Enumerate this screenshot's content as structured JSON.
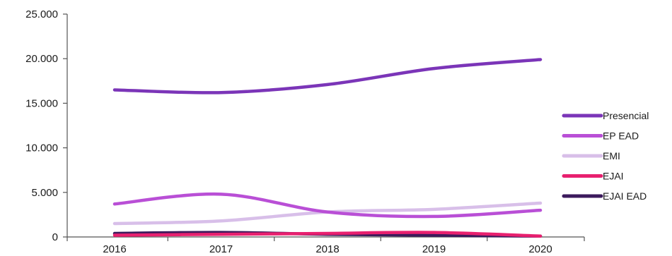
{
  "chart_data": {
    "type": "line",
    "title": "",
    "xlabel": "",
    "ylabel": "",
    "categories": [
      "2016",
      "2017",
      "2018",
      "2019",
      "2020"
    ],
    "ylim": [
      0,
      25000
    ],
    "y_ticks": [
      0,
      5000,
      10000,
      15000,
      20000,
      25000
    ],
    "y_tick_labels": [
      "0",
      "5.000",
      "10.000",
      "15.000",
      "20.000",
      "25.000"
    ],
    "grid": false,
    "smooth": true,
    "legend_position": "right",
    "series": [
      {
        "name": "Presencial",
        "color": "#7b35b8",
        "values": [
          16500,
          16200,
          17100,
          18900,
          19900
        ]
      },
      {
        "name": "EP EAD",
        "color": "#b94fd6",
        "values": [
          3700,
          4800,
          2800,
          2300,
          3000
        ]
      },
      {
        "name": "EMI",
        "color": "#d8bfe9",
        "values": [
          1500,
          1800,
          2800,
          3100,
          3800
        ]
      },
      {
        "name": "EJAI",
        "color": "#e8206f",
        "values": [
          200,
          300,
          400,
          500,
          100
        ]
      },
      {
        "name": "EJAI EAD",
        "color": "#3c1a5c",
        "values": [
          400,
          500,
          300,
          200,
          100
        ]
      }
    ]
  }
}
